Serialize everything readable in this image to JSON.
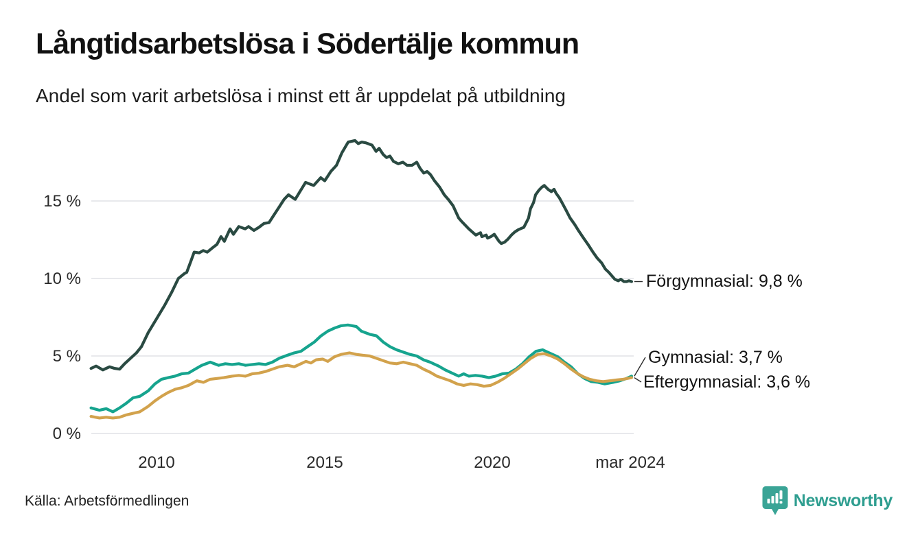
{
  "header": {
    "title": "Långtidsarbetslösa i Södertälje kommun",
    "subtitle": "Andel som varit arbetslösa i minst ett år uppdelat på utbildning"
  },
  "source": {
    "label": "Källa: Arbetsförmedlingen"
  },
  "branding": {
    "name": "Newsworthy",
    "logo_color": "#3aa496",
    "text_color": "#2f9e90",
    "logo_icon": "speech-bubble-bar-chart-icon"
  },
  "colors": {
    "background": "#ffffff",
    "gridline": "#e8e9ec",
    "connector": "#2b2b2b",
    "text": "#111111"
  },
  "chart_data": {
    "type": "line",
    "title": "Långtidsarbetslösa i Södertälje kommun",
    "subtitle": "Andel som varit arbetslösa i minst ett år uppdelat på utbildning",
    "grid": true,
    "legend_position": "end-of-line-labels",
    "x_axis": {
      "range": [
        2008.0,
        2024.3
      ],
      "ticks": [
        {
          "label": "2010",
          "value": 2010
        },
        {
          "label": "2015",
          "value": 2015
        },
        {
          "label": "2020",
          "value": 2020
        },
        {
          "label": "mar 2024",
          "value": 2024.17
        }
      ]
    },
    "y_axis": {
      "unit": "%",
      "range": [
        0,
        19.5
      ],
      "ticks": [
        {
          "label": "15 %",
          "value": 15
        },
        {
          "label": "10 %",
          "value": 10
        },
        {
          "label": "5 %",
          "value": 5
        },
        {
          "label": "0 %",
          "value": 0
        }
      ]
    },
    "series": [
      {
        "name": "Förgymnasial",
        "end_label": "Förgymnasial: 9,8 %",
        "last_value": 9.8,
        "color": "#2a4a42",
        "points": [
          [
            2008.05,
            4.2
          ],
          [
            2008.2,
            4.35
          ],
          [
            2008.4,
            4.1
          ],
          [
            2008.6,
            4.3
          ],
          [
            2008.75,
            4.2
          ],
          [
            2008.9,
            4.15
          ],
          [
            2009.05,
            4.5
          ],
          [
            2009.2,
            4.8
          ],
          [
            2009.4,
            5.2
          ],
          [
            2009.55,
            5.6
          ],
          [
            2009.75,
            6.5
          ],
          [
            2010.0,
            7.4
          ],
          [
            2010.25,
            8.3
          ],
          [
            2010.45,
            9.1
          ],
          [
            2010.65,
            10.0
          ],
          [
            2010.82,
            10.3
          ],
          [
            2010.9,
            10.4
          ],
          [
            2011.02,
            11.1
          ],
          [
            2011.12,
            11.7
          ],
          [
            2011.27,
            11.65
          ],
          [
            2011.39,
            11.8
          ],
          [
            2011.51,
            11.7
          ],
          [
            2011.68,
            12.0
          ],
          [
            2011.8,
            12.2
          ],
          [
            2011.92,
            12.7
          ],
          [
            2012.02,
            12.4
          ],
          [
            2012.19,
            13.2
          ],
          [
            2012.29,
            12.85
          ],
          [
            2012.45,
            13.35
          ],
          [
            2012.64,
            13.2
          ],
          [
            2012.74,
            13.35
          ],
          [
            2012.9,
            13.1
          ],
          [
            2013.05,
            13.3
          ],
          [
            2013.2,
            13.55
          ],
          [
            2013.35,
            13.6
          ],
          [
            2013.5,
            14.1
          ],
          [
            2013.65,
            14.6
          ],
          [
            2013.8,
            15.1
          ],
          [
            2013.93,
            15.4
          ],
          [
            2014.13,
            15.1
          ],
          [
            2014.27,
            15.6
          ],
          [
            2014.44,
            16.2
          ],
          [
            2014.68,
            16.0
          ],
          [
            2014.89,
            16.5
          ],
          [
            2015.01,
            16.3
          ],
          [
            2015.19,
            16.9
          ],
          [
            2015.36,
            17.3
          ],
          [
            2015.52,
            18.1
          ],
          [
            2015.71,
            18.8
          ],
          [
            2015.91,
            18.9
          ],
          [
            2016.01,
            18.7
          ],
          [
            2016.11,
            18.8
          ],
          [
            2016.24,
            18.75
          ],
          [
            2016.42,
            18.6
          ],
          [
            2016.54,
            18.2
          ],
          [
            2016.63,
            18.4
          ],
          [
            2016.75,
            18.0
          ],
          [
            2016.85,
            17.8
          ],
          [
            2016.95,
            17.9
          ],
          [
            2017.06,
            17.55
          ],
          [
            2017.2,
            17.4
          ],
          [
            2017.34,
            17.5
          ],
          [
            2017.46,
            17.3
          ],
          [
            2017.61,
            17.3
          ],
          [
            2017.75,
            17.5
          ],
          [
            2017.85,
            17.1
          ],
          [
            2017.96,
            16.8
          ],
          [
            2018.06,
            16.9
          ],
          [
            2018.16,
            16.7
          ],
          [
            2018.28,
            16.3
          ],
          [
            2018.43,
            15.9
          ],
          [
            2018.57,
            15.4
          ],
          [
            2018.69,
            15.1
          ],
          [
            2018.83,
            14.7
          ],
          [
            2019.0,
            13.9
          ],
          [
            2019.08,
            13.7
          ],
          [
            2019.3,
            13.2
          ],
          [
            2019.51,
            12.8
          ],
          [
            2019.65,
            12.95
          ],
          [
            2019.69,
            12.7
          ],
          [
            2019.82,
            12.8
          ],
          [
            2019.86,
            12.6
          ],
          [
            2019.96,
            12.7
          ],
          [
            2020.06,
            12.85
          ],
          [
            2020.2,
            12.4
          ],
          [
            2020.27,
            12.25
          ],
          [
            2020.37,
            12.35
          ],
          [
            2020.47,
            12.55
          ],
          [
            2020.57,
            12.8
          ],
          [
            2020.67,
            13.0
          ],
          [
            2020.78,
            13.15
          ],
          [
            2020.94,
            13.3
          ],
          [
            2021.08,
            13.9
          ],
          [
            2021.14,
            14.5
          ],
          [
            2021.23,
            14.9
          ],
          [
            2021.29,
            15.4
          ],
          [
            2021.39,
            15.7
          ],
          [
            2021.48,
            15.9
          ],
          [
            2021.55,
            16.0
          ],
          [
            2021.66,
            15.75
          ],
          [
            2021.76,
            15.6
          ],
          [
            2021.84,
            15.75
          ],
          [
            2021.9,
            15.5
          ],
          [
            2022.0,
            15.2
          ],
          [
            2022.1,
            14.8
          ],
          [
            2022.2,
            14.4
          ],
          [
            2022.32,
            13.9
          ],
          [
            2022.45,
            13.5
          ],
          [
            2022.58,
            13.05
          ],
          [
            2022.72,
            12.6
          ],
          [
            2022.85,
            12.2
          ],
          [
            2023.0,
            11.7
          ],
          [
            2023.13,
            11.3
          ],
          [
            2023.26,
            11.0
          ],
          [
            2023.37,
            10.6
          ],
          [
            2023.47,
            10.4
          ],
          [
            2023.55,
            10.2
          ],
          [
            2023.65,
            9.95
          ],
          [
            2023.75,
            9.85
          ],
          [
            2023.83,
            9.95
          ],
          [
            2023.92,
            9.8
          ],
          [
            2024.0,
            9.8
          ],
          [
            2024.07,
            9.85
          ],
          [
            2024.15,
            9.8
          ]
        ]
      },
      {
        "name": "Gymnasial",
        "end_label": "Gymnasial: 3,7 %",
        "last_value": 3.7,
        "color": "#16a48e",
        "points": [
          [
            2008.05,
            1.65
          ],
          [
            2008.3,
            1.5
          ],
          [
            2008.5,
            1.6
          ],
          [
            2008.7,
            1.4
          ],
          [
            2008.9,
            1.65
          ],
          [
            2009.1,
            1.95
          ],
          [
            2009.3,
            2.3
          ],
          [
            2009.5,
            2.4
          ],
          [
            2009.75,
            2.75
          ],
          [
            2009.95,
            3.2
          ],
          [
            2010.15,
            3.5
          ],
          [
            2010.35,
            3.6
          ],
          [
            2010.55,
            3.7
          ],
          [
            2010.75,
            3.85
          ],
          [
            2010.95,
            3.9
          ],
          [
            2011.15,
            4.15
          ],
          [
            2011.35,
            4.4
          ],
          [
            2011.6,
            4.6
          ],
          [
            2011.85,
            4.4
          ],
          [
            2012.05,
            4.5
          ],
          [
            2012.25,
            4.45
          ],
          [
            2012.45,
            4.5
          ],
          [
            2012.65,
            4.4
          ],
          [
            2012.85,
            4.45
          ],
          [
            2013.05,
            4.5
          ],
          [
            2013.25,
            4.45
          ],
          [
            2013.45,
            4.6
          ],
          [
            2013.65,
            4.85
          ],
          [
            2013.9,
            5.05
          ],
          [
            2014.1,
            5.2
          ],
          [
            2014.3,
            5.3
          ],
          [
            2014.5,
            5.6
          ],
          [
            2014.7,
            5.9
          ],
          [
            2014.9,
            6.3
          ],
          [
            2015.1,
            6.6
          ],
          [
            2015.3,
            6.8
          ],
          [
            2015.5,
            6.95
          ],
          [
            2015.7,
            7.0
          ],
          [
            2015.95,
            6.9
          ],
          [
            2016.1,
            6.6
          ],
          [
            2016.35,
            6.4
          ],
          [
            2016.55,
            6.3
          ],
          [
            2016.75,
            5.9
          ],
          [
            2016.95,
            5.6
          ],
          [
            2017.15,
            5.4
          ],
          [
            2017.35,
            5.25
          ],
          [
            2017.55,
            5.1
          ],
          [
            2017.75,
            5.0
          ],
          [
            2017.95,
            4.75
          ],
          [
            2018.15,
            4.6
          ],
          [
            2018.4,
            4.35
          ],
          [
            2018.6,
            4.1
          ],
          [
            2018.8,
            3.9
          ],
          [
            2019.0,
            3.7
          ],
          [
            2019.15,
            3.85
          ],
          [
            2019.3,
            3.7
          ],
          [
            2019.5,
            3.75
          ],
          [
            2019.7,
            3.7
          ],
          [
            2019.9,
            3.6
          ],
          [
            2020.1,
            3.7
          ],
          [
            2020.3,
            3.85
          ],
          [
            2020.5,
            3.9
          ],
          [
            2020.7,
            4.15
          ],
          [
            2020.9,
            4.5
          ],
          [
            2021.1,
            4.95
          ],
          [
            2021.3,
            5.3
          ],
          [
            2021.5,
            5.4
          ],
          [
            2021.7,
            5.2
          ],
          [
            2021.95,
            4.95
          ],
          [
            2022.15,
            4.6
          ],
          [
            2022.35,
            4.3
          ],
          [
            2022.55,
            3.85
          ],
          [
            2022.75,
            3.55
          ],
          [
            2022.95,
            3.35
          ],
          [
            2023.15,
            3.3
          ],
          [
            2023.35,
            3.2
          ],
          [
            2023.6,
            3.3
          ],
          [
            2023.8,
            3.4
          ],
          [
            2024.0,
            3.55
          ],
          [
            2024.15,
            3.7
          ]
        ]
      },
      {
        "name": "Eftergymnasial",
        "end_label": "Eftergymnasial: 3,6 %",
        "last_value": 3.6,
        "color": "#d2a24c",
        "points": [
          [
            2008.05,
            1.1
          ],
          [
            2008.3,
            1.0
          ],
          [
            2008.5,
            1.05
          ],
          [
            2008.7,
            1.0
          ],
          [
            2008.9,
            1.05
          ],
          [
            2009.1,
            1.2
          ],
          [
            2009.3,
            1.3
          ],
          [
            2009.5,
            1.4
          ],
          [
            2009.75,
            1.75
          ],
          [
            2009.95,
            2.1
          ],
          [
            2010.15,
            2.4
          ],
          [
            2010.35,
            2.65
          ],
          [
            2010.55,
            2.85
          ],
          [
            2010.75,
            2.95
          ],
          [
            2010.95,
            3.1
          ],
          [
            2011.2,
            3.4
          ],
          [
            2011.4,
            3.3
          ],
          [
            2011.6,
            3.5
          ],
          [
            2011.8,
            3.55
          ],
          [
            2012.0,
            3.6
          ],
          [
            2012.25,
            3.7
          ],
          [
            2012.45,
            3.75
          ],
          [
            2012.65,
            3.7
          ],
          [
            2012.85,
            3.85
          ],
          [
            2013.05,
            3.9
          ],
          [
            2013.25,
            4.0
          ],
          [
            2013.45,
            4.15
          ],
          [
            2013.65,
            4.3
          ],
          [
            2013.9,
            4.4
          ],
          [
            2014.1,
            4.3
          ],
          [
            2014.3,
            4.5
          ],
          [
            2014.45,
            4.65
          ],
          [
            2014.6,
            4.55
          ],
          [
            2014.75,
            4.75
          ],
          [
            2014.95,
            4.8
          ],
          [
            2015.1,
            4.65
          ],
          [
            2015.3,
            4.95
          ],
          [
            2015.5,
            5.1
          ],
          [
            2015.75,
            5.2
          ],
          [
            2015.95,
            5.1
          ],
          [
            2016.15,
            5.05
          ],
          [
            2016.35,
            5.0
          ],
          [
            2016.55,
            4.85
          ],
          [
            2016.75,
            4.7
          ],
          [
            2016.95,
            4.55
          ],
          [
            2017.15,
            4.5
          ],
          [
            2017.35,
            4.6
          ],
          [
            2017.55,
            4.5
          ],
          [
            2017.75,
            4.4
          ],
          [
            2017.95,
            4.15
          ],
          [
            2018.15,
            3.95
          ],
          [
            2018.35,
            3.7
          ],
          [
            2018.55,
            3.55
          ],
          [
            2018.75,
            3.4
          ],
          [
            2018.95,
            3.2
          ],
          [
            2019.15,
            3.1
          ],
          [
            2019.35,
            3.2
          ],
          [
            2019.55,
            3.15
          ],
          [
            2019.75,
            3.05
          ],
          [
            2019.95,
            3.1
          ],
          [
            2020.15,
            3.3
          ],
          [
            2020.35,
            3.55
          ],
          [
            2020.55,
            3.85
          ],
          [
            2020.75,
            4.15
          ],
          [
            2020.95,
            4.5
          ],
          [
            2021.15,
            4.85
          ],
          [
            2021.35,
            5.1
          ],
          [
            2021.55,
            5.15
          ],
          [
            2021.75,
            5.0
          ],
          [
            2021.95,
            4.8
          ],
          [
            2022.15,
            4.5
          ],
          [
            2022.35,
            4.15
          ],
          [
            2022.55,
            3.85
          ],
          [
            2022.72,
            3.65
          ],
          [
            2022.9,
            3.5
          ],
          [
            2023.1,
            3.4
          ],
          [
            2023.3,
            3.35
          ],
          [
            2023.5,
            3.4
          ],
          [
            2023.7,
            3.45
          ],
          [
            2023.9,
            3.5
          ],
          [
            2024.15,
            3.6
          ]
        ]
      }
    ]
  }
}
